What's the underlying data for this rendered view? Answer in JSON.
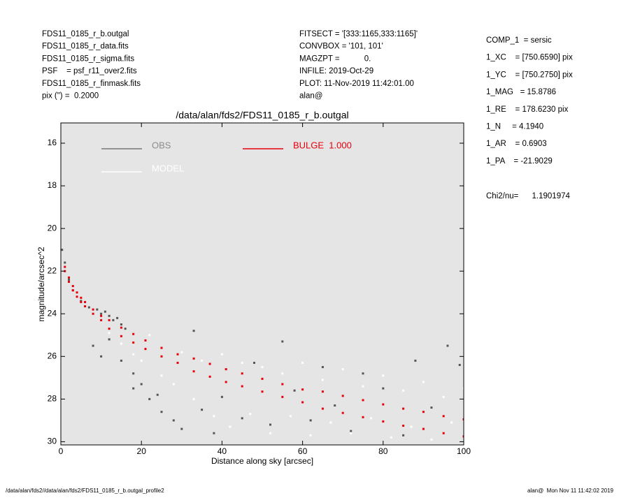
{
  "header": {
    "left": [
      "FDS11_0185_r_b.outgal",
      "FDS11_0185_r_data.fits",
      "FDS11_0185_r_sigma.fits",
      "PSF    = psf_r11_over2.fits",
      "FDS11_0185_r_finmask.fits",
      "pix (\") =  0.2000"
    ],
    "middle": [
      "FITSECT = '[333:1165,333:1165]'",
      "CONVBOX = '101, 101'",
      "MAGZPT =           0.",
      "INFILE: 2019-Oct-29",
      "PLOT: 11-Nov-2019 11:42:01.00",
      "alan@"
    ],
    "params": [
      "COMP_1  = sersic",
      "1_XC    = [750.6590] pix",
      "1_YC    = [750.2750] pix",
      "1_MAG   = 15.8786",
      "1_RE    = 178.6230 pix",
      "1_N     = 4.1940",
      "1_AR    = 0.6903",
      "1_PA    = -21.9029"
    ],
    "chi2": "Chi2/nu=      1.1901974"
  },
  "footer": {
    "left": "/data/alan/fds2//data/alan/fds2/FDS11_0185_r_b.outgal_profile2",
    "right": "alan@  Mon Nov 11 11:42:02 2019"
  },
  "chart_data": {
    "type": "scatter",
    "title": "/data/alan/fds2/FDS11_0185_r_b.outgal",
    "x_label": "Distance along sky [arcsec]",
    "y_label": "magnitude/arcsec^2",
    "xlim": [
      0,
      100
    ],
    "xticks": [
      0,
      20,
      40,
      60,
      80,
      100
    ],
    "ylim": [
      30.15,
      15.05
    ],
    "yticks": [
      16,
      18,
      20,
      22,
      24,
      26,
      28,
      30
    ],
    "grid": false,
    "series": [
      {
        "name": "OBS",
        "color": "#555555",
        "x": [
          0.3,
          1,
          2,
          3,
          5,
          7,
          9,
          10,
          11,
          12,
          13,
          14,
          15,
          16,
          8,
          10,
          12,
          15,
          18,
          18,
          20,
          22,
          24,
          25,
          28,
          33,
          30,
          35,
          38,
          40,
          45,
          48,
          52,
          55,
          58,
          62,
          65,
          68,
          72,
          75,
          80,
          85,
          88,
          92,
          96,
          99
        ],
        "values": [
          21.0,
          21.6,
          22.4,
          22.9,
          23.4,
          23.7,
          23.8,
          24.0,
          23.9,
          24.1,
          24.3,
          24.2,
          24.5,
          24.7,
          25.5,
          26.0,
          25.2,
          26.2,
          26.8,
          27.5,
          27.3,
          28.0,
          27.8,
          28.6,
          29.0,
          24.8,
          29.4,
          28.5,
          29.6,
          27.9,
          28.9,
          26.3,
          29.2,
          25.3,
          27.6,
          29.0,
          26.5,
          28.3,
          29.5,
          26.8,
          27.5,
          29.7,
          26.2,
          28.4,
          25.5,
          26.4
        ]
      },
      {
        "name": "MODEL",
        "color": "#ffffff",
        "x": [
          12,
          15,
          18,
          20,
          22,
          25,
          28,
          30,
          33,
          35,
          38,
          40,
          42,
          45,
          47,
          50,
          52,
          55,
          57,
          60,
          62,
          65,
          67,
          70,
          72,
          75,
          77,
          80,
          82,
          85,
          87,
          90,
          92,
          95,
          97,
          100
        ],
        "values": [
          24.9,
          25.4,
          25.9,
          26.2,
          25.0,
          26.9,
          27.3,
          25.8,
          28.0,
          26.2,
          28.8,
          25.9,
          29.3,
          26.3,
          28.7,
          26.5,
          29.6,
          26.8,
          28.8,
          26.3,
          29.7,
          27.1,
          29.1,
          26.6,
          29.6,
          27.4,
          28.9,
          26.9,
          29.8,
          27.6,
          29.3,
          27.2,
          29.9,
          27.9,
          29.1,
          27.5
        ]
      },
      {
        "name": "BULGE  1.000",
        "color": "#e8000b",
        "x": [
          1,
          1,
          2,
          2,
          3,
          3,
          4,
          4,
          5,
          5,
          6,
          6,
          8,
          8,
          10,
          10,
          12,
          12,
          15,
          15,
          18,
          18,
          21,
          21,
          25,
          25,
          29,
          29,
          33,
          33,
          37,
          37,
          41,
          41,
          45,
          45,
          50,
          50,
          55,
          55,
          60,
          60,
          65,
          65,
          70,
          70,
          75,
          75,
          80,
          80,
          85,
          85,
          90,
          90,
          95,
          95,
          100,
          100
        ],
        "values": [
          21.8,
          22.0,
          22.3,
          22.5,
          22.7,
          22.9,
          23.0,
          23.2,
          23.25,
          23.45,
          23.45,
          23.65,
          23.8,
          24.0,
          24.1,
          24.3,
          24.3,
          24.7,
          24.65,
          25.05,
          24.95,
          25.35,
          25.25,
          25.65,
          25.6,
          26.0,
          25.9,
          26.3,
          26.1,
          26.7,
          26.35,
          26.95,
          26.6,
          27.2,
          26.8,
          27.4,
          27.05,
          27.65,
          27.3,
          27.9,
          27.55,
          28.15,
          27.65,
          28.45,
          27.85,
          28.65,
          28.05,
          28.85,
          28.25,
          29.05,
          28.45,
          29.25,
          28.6,
          29.4,
          28.8,
          29.6,
          28.95,
          29.75
        ]
      }
    ]
  }
}
